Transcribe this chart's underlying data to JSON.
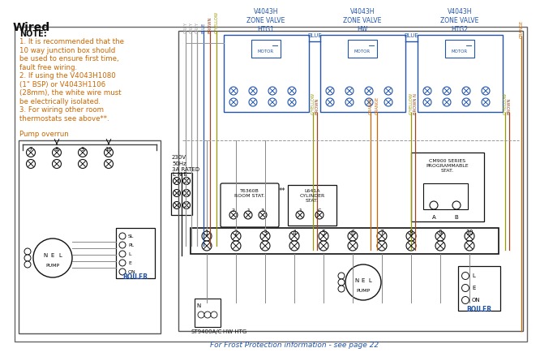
{
  "title": "Wired",
  "bg_color": "#ffffff",
  "border_color": "#555555",
  "note_color": "#cc6600",
  "blue_color": "#2255aa",
  "gray_color": "#888888",
  "orange_color": "#cc6600",
  "black_color": "#111111",
  "dark_gray": "#444444",
  "note_title": "NOTE:",
  "note_lines": [
    "1. It is recommended that the",
    "10 way junction box should",
    "be used to ensure first time,",
    "fault free wiring.",
    "2. If using the V4043H1080",
    "(1\" BSP) or V4043H1106",
    "(28mm), the white wire must",
    "be electrically isolated.",
    "3. For wiring other room",
    "thermostats see above**."
  ],
  "pump_overrun_label": "Pump overrun",
  "boiler_label": "BOILER",
  "pump_label": "PUMP",
  "st9400_label": "ST9400A/C",
  "hw_htg_label": "HW HTG",
  "cm900_label": "CM900 SERIES\nPROGRAMMABLE\nSTAT.",
  "t6360b_label": "T6360B\nROOM STAT.",
  "l641a_label": "L641A\nCYLINDER\nSTAT.",
  "footer_text": "For Frost Protection information - see page 22",
  "supply_label": "230V\n50Hz\n3A RATED",
  "valve_labels": [
    "V4043H\nZONE VALVE\nHTG1",
    "V4043H\nZONE VALVE\nHW",
    "V4043H\nZONE VALVE\nHTG2"
  ],
  "terminal_nums": [
    "1",
    "2",
    "3",
    "4",
    "5",
    "6",
    "7",
    "8",
    "9",
    "10"
  ],
  "boiler_labels": [
    "L",
    "E",
    "ON"
  ],
  "pump_overrun_boiler_labels": [
    "SL",
    "PL",
    "L",
    "E",
    "ON"
  ],
  "wire_colors": {
    "grey": "#999999",
    "blue": "#2255aa",
    "brown": "#994422",
    "gyellow": "#999900",
    "orange": "#cc6600"
  }
}
